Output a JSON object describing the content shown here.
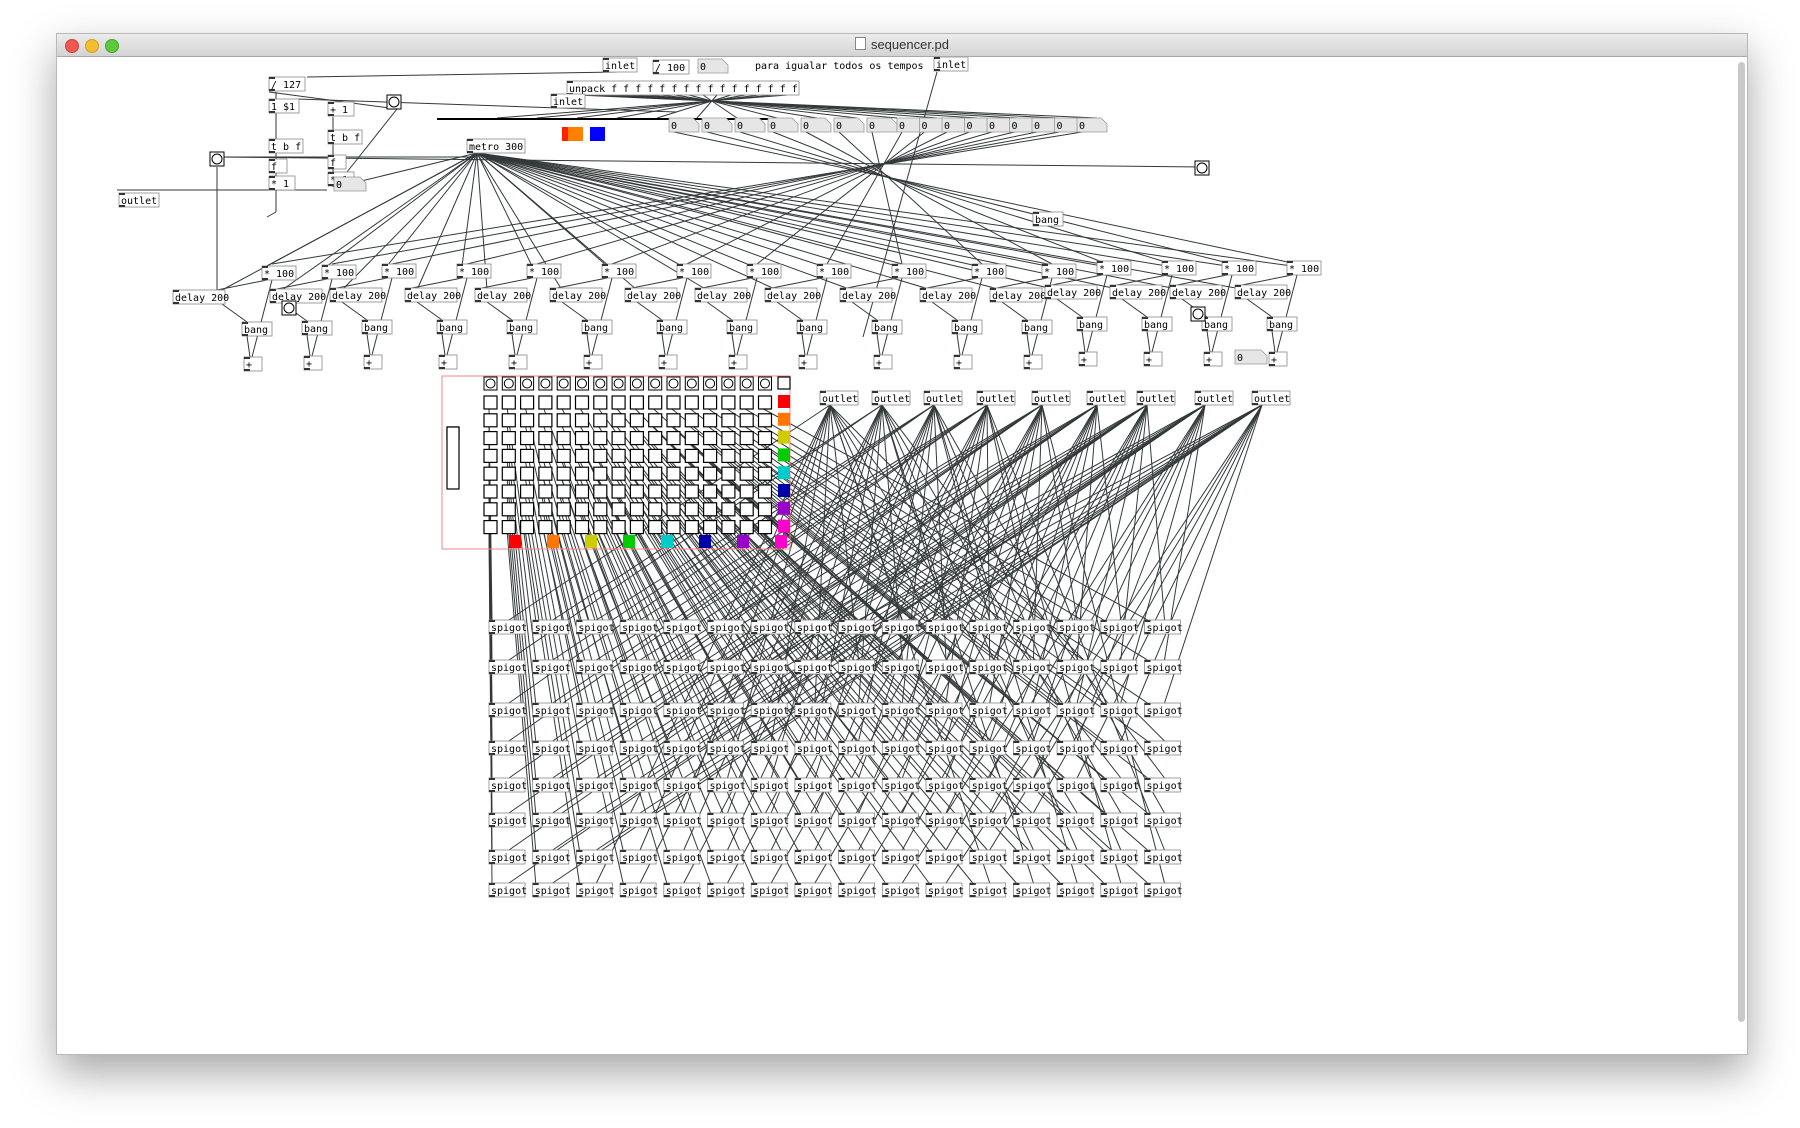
{
  "window": {
    "title": "sequencer.pd"
  },
  "comment": "para igualar todos os tempos",
  "top": {
    "inlet_label": "inlet",
    "mult100": "/ 100",
    "zero": "0",
    "inlet2_label": "inlet",
    "inlet3_label": "inlet",
    "unpack": "unpack f f f f f f f f f f f f f f f f",
    "num127": "127",
    "msg1": "1 $1",
    "plus1": "+ 1",
    "tbf": "t b f",
    "f": "f",
    "mult1": "* 1",
    "metro": "metro 300",
    "outlet_label": "outlet"
  },
  "chain": {
    "mult": "* 100",
    "delay": "delay 200",
    "bang": "bang",
    "plus": "+"
  },
  "grid_outlet_label": "outlet",
  "spigot_label": "spigot",
  "colors": {
    "row_colors": [
      "#ff0000",
      "#ff7700",
      "#cccc00",
      "#00cc00",
      "#00cccc",
      "#0000aa",
      "#9900cc",
      "#ff00cc"
    ],
    "swatch_orange": "#ff7f00",
    "swatch_red": "#ff2200",
    "swatch_blue": "#0000ff",
    "wire": "#33393a"
  }
}
